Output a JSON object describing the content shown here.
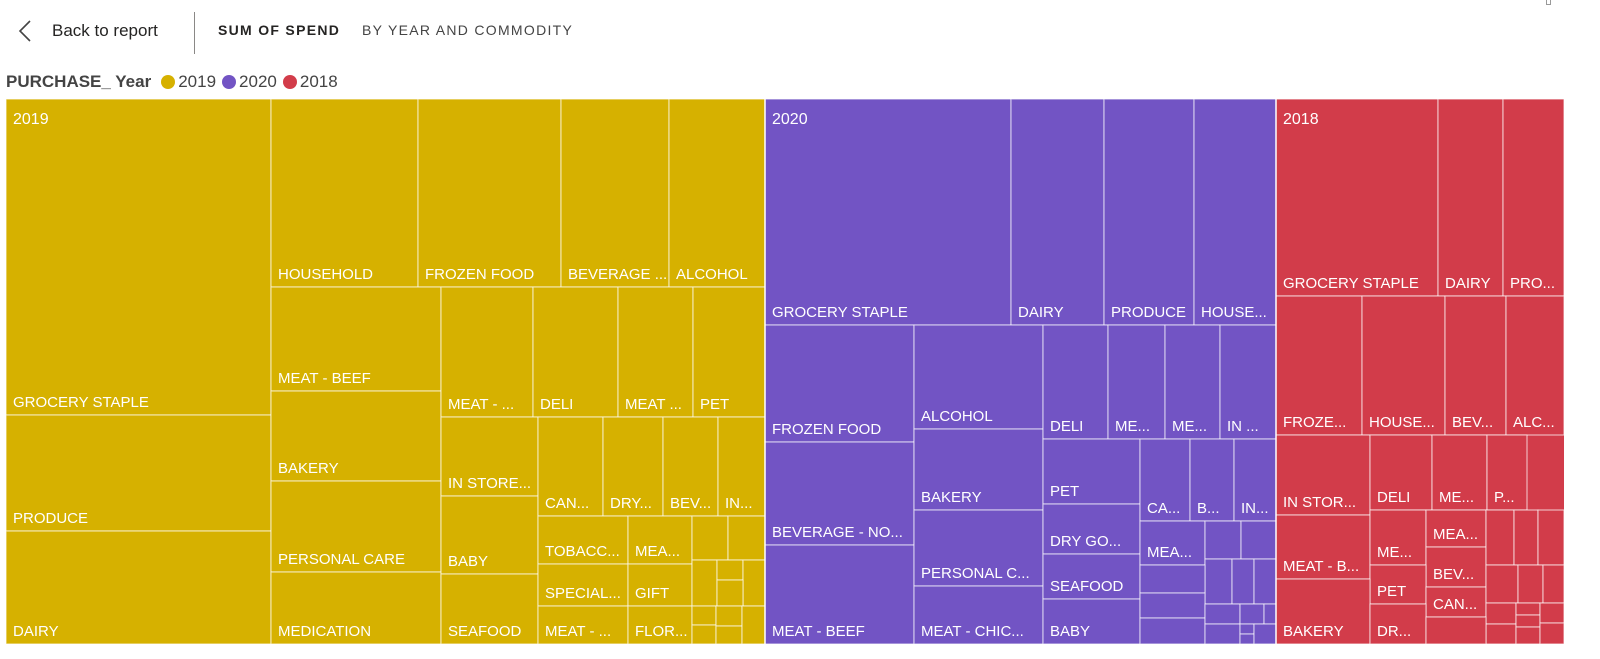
{
  "header": {
    "back_label": "Back to report",
    "title": "SUM OF SPEND",
    "subtitle": "BY YEAR AND COMMODITY"
  },
  "legend": {
    "title": "PURCHASE_ Year",
    "items": [
      {
        "label": "2019",
        "color": "#d6b100"
      },
      {
        "label": "2020",
        "color": "#7254c4"
      },
      {
        "label": "2018",
        "color": "#d23c4a"
      }
    ]
  },
  "chart_data": {
    "type": "treemap",
    "title": "SUM OF SPEND BY YEAR AND COMMODITY",
    "legend_title": "PURCHASE_ Year",
    "groups": [
      {
        "name": "2019",
        "color": "#d6b100",
        "tiles": [
          {
            "label": "GROCERY STAPLE"
          },
          {
            "label": "PRODUCE"
          },
          {
            "label": "DAIRY"
          },
          {
            "label": "HOUSEHOLD"
          },
          {
            "label": "FROZEN FOOD"
          },
          {
            "label": "BEVERAGE ..."
          },
          {
            "label": "ALCOHOL"
          },
          {
            "label": "MEAT - BEEF"
          },
          {
            "label": "BAKERY"
          },
          {
            "label": "PERSONAL CARE"
          },
          {
            "label": "MEDICATION"
          },
          {
            "label": "MEAT - ..."
          },
          {
            "label": "DELI"
          },
          {
            "label": "MEAT ..."
          },
          {
            "label": "PET"
          },
          {
            "label": "IN STORE..."
          },
          {
            "label": "BABY"
          },
          {
            "label": "SEAFOOD"
          },
          {
            "label": "CAN..."
          },
          {
            "label": "DRY..."
          },
          {
            "label": "BEV..."
          },
          {
            "label": "IN..."
          },
          {
            "label": "TOBACC..."
          },
          {
            "label": "MEA..."
          },
          {
            "label": "SPECIAL..."
          },
          {
            "label": "GIFT"
          },
          {
            "label": "MEAT - ..."
          },
          {
            "label": "FLOR..."
          }
        ]
      },
      {
        "name": "2020",
        "color": "#7254c4",
        "tiles": [
          {
            "label": "GROCERY STAPLE"
          },
          {
            "label": "DAIRY"
          },
          {
            "label": "PRODUCE"
          },
          {
            "label": "HOUSE..."
          },
          {
            "label": "FROZEN FOOD"
          },
          {
            "label": "BEVERAGE - NO..."
          },
          {
            "label": "MEAT - BEEF"
          },
          {
            "label": "ALCOHOL"
          },
          {
            "label": "BAKERY"
          },
          {
            "label": "PERSONAL C..."
          },
          {
            "label": "MEAT - CHIC..."
          },
          {
            "label": "DELI"
          },
          {
            "label": "ME..."
          },
          {
            "label": "ME..."
          },
          {
            "label": "IN ..."
          },
          {
            "label": "PET"
          },
          {
            "label": "DRY GO..."
          },
          {
            "label": "SEAFOOD"
          },
          {
            "label": "BABY"
          },
          {
            "label": "CA..."
          },
          {
            "label": "B..."
          },
          {
            "label": "IN..."
          },
          {
            "label": "MEA..."
          }
        ]
      },
      {
        "name": "2018",
        "color": "#d23c4a",
        "tiles": [
          {
            "label": "GROCERY STAPLE"
          },
          {
            "label": "DAIRY"
          },
          {
            "label": "PRO..."
          },
          {
            "label": "FROZE..."
          },
          {
            "label": "HOUSE..."
          },
          {
            "label": "BEV..."
          },
          {
            "label": "ALC..."
          },
          {
            "label": "IN STOR..."
          },
          {
            "label": "DELI"
          },
          {
            "label": "ME..."
          },
          {
            "label": "P..."
          },
          {
            "label": "MEAT - B..."
          },
          {
            "label": "ME..."
          },
          {
            "label": "MEA..."
          },
          {
            "label": "BEV..."
          },
          {
            "label": "PET"
          },
          {
            "label": "CAN..."
          },
          {
            "label": "BAKERY"
          },
          {
            "label": "DR..."
          }
        ]
      }
    ]
  }
}
